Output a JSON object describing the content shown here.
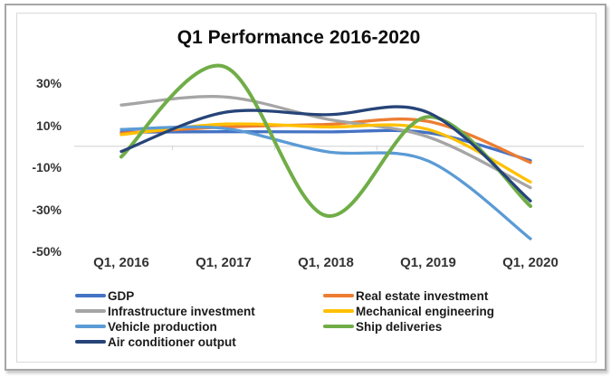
{
  "chart_data": {
    "type": "line",
    "title": "Q1 Performance 2016-2020",
    "smooth": true,
    "grid": "horizontal-zero-line-only",
    "legend_position": "bottom",
    "unit": "%",
    "categories": [
      "Q1, 2016",
      "Q1, 2017",
      "Q1, 2018",
      "Q1, 2019",
      "Q1, 2020"
    ],
    "y_ticks": [
      "30%",
      "10%",
      "-10%",
      "-30%",
      "-50%"
    ],
    "y_tick_values": [
      30,
      10,
      -10,
      -30,
      -50
    ],
    "ylim": [
      -55,
      42
    ],
    "series": [
      {
        "name": "GDP",
        "color": "#4472C4",
        "values": [
          6.7,
          6.9,
          6.8,
          6.4,
          -6.8
        ]
      },
      {
        "name": "Real estate investment",
        "color": "#ED7D31",
        "values": [
          6.2,
          9.1,
          10.4,
          11.8,
          -7.7
        ]
      },
      {
        "name": "Infrastructure investment",
        "color": "#A5A5A5",
        "values": [
          19.6,
          23.5,
          13.0,
          4.4,
          -19.7
        ]
      },
      {
        "name": "Mechanical engineering",
        "color": "#FFC000",
        "values": [
          5.5,
          10.5,
          9.2,
          8.0,
          -17.0
        ]
      },
      {
        "name": "Vehicle production",
        "color": "#5B9BD5",
        "values": [
          8.0,
          8.5,
          -2.5,
          -7.0,
          -44.0
        ]
      },
      {
        "name": "Ship deliveries",
        "color": "#70AD47",
        "values": [
          -5.0,
          38.0,
          -33.0,
          14.0,
          -28.5
        ]
      },
      {
        "name": "Air conditioner output",
        "color": "#264478",
        "values": [
          -2.5,
          16.0,
          15.0,
          16.0,
          -26.0
        ]
      }
    ],
    "colors": {
      "gridline": "#d9d9d9",
      "axis_text": "#333333",
      "title_text": "#0d0d0d",
      "frame_border": "#a6a6a6",
      "plot_border": "#d9d9d9",
      "background": "#ffffff"
    }
  }
}
